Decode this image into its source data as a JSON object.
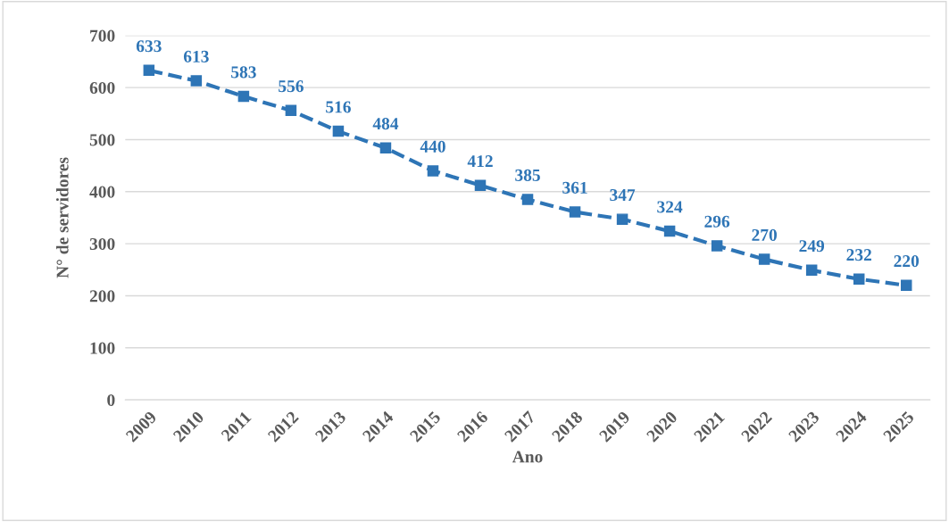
{
  "chart_data": {
    "type": "line",
    "xlabel": "Ano",
    "ylabel": "N° de servidores",
    "categories": [
      "2009",
      "2010",
      "2011",
      "2012",
      "2013",
      "2014",
      "2015",
      "2016",
      "2017",
      "2018",
      "2019",
      "2020",
      "2021",
      "2022",
      "2023",
      "2024",
      "2025"
    ],
    "series": [
      {
        "color": "#2e75b6",
        "values": [
          633,
          613,
          583,
          556,
          516,
          484,
          440,
          412,
          385,
          361,
          347,
          324,
          296,
          270,
          249,
          232,
          220
        ]
      }
    ],
    "ylim": [
      0,
      700
    ],
    "yticks": [
      0,
      100,
      200,
      300,
      400,
      500,
      600,
      700
    ],
    "grid": "y",
    "marker": "square",
    "line_style": "dashed",
    "data_labels": true,
    "legend": false
  }
}
